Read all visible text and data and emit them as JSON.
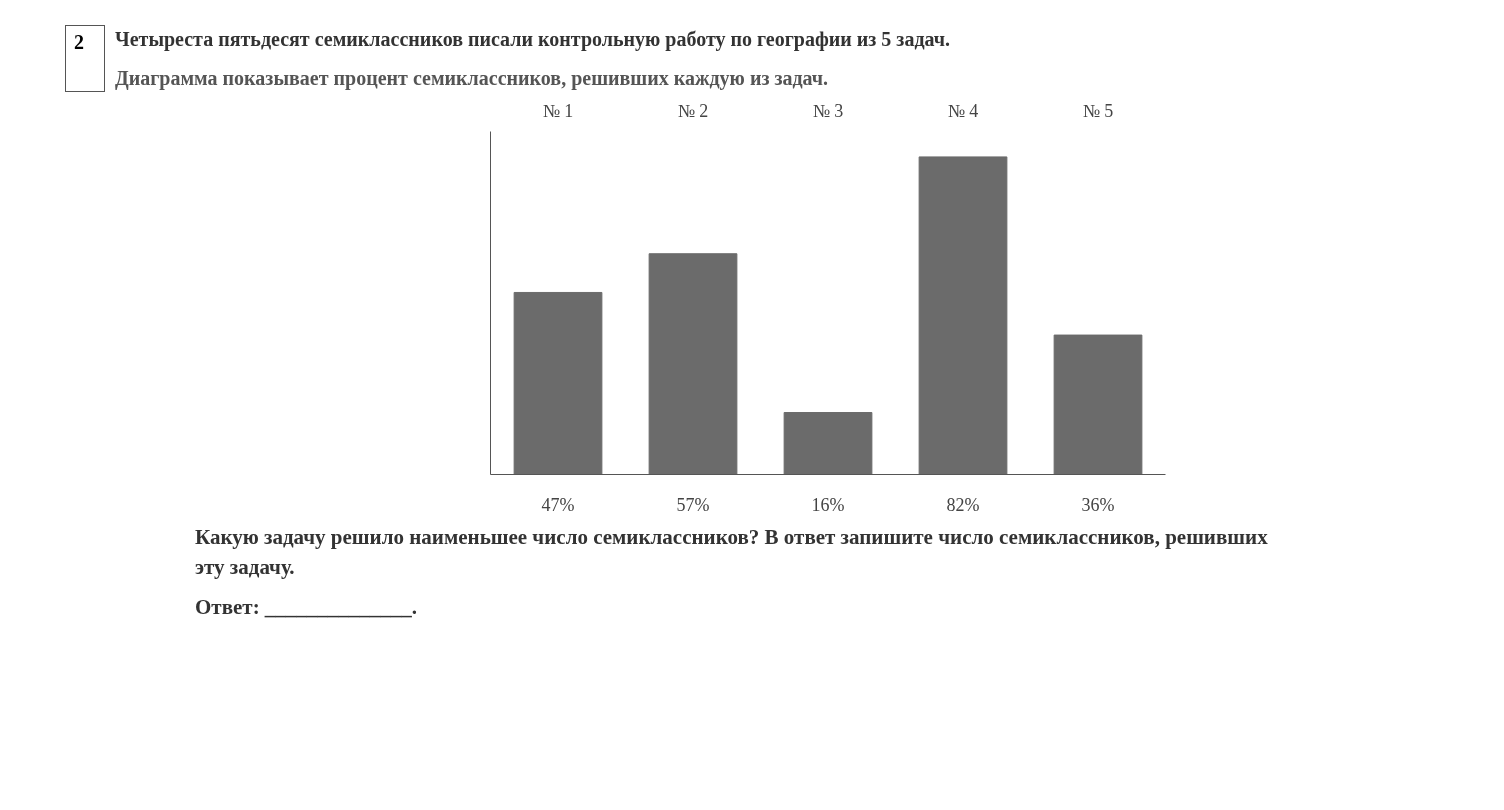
{
  "chart_data": {
    "type": "bar",
    "title": "Четыреста пятьдесят семиклассников писали контрольную работу по географии из 5 задач.",
    "subtitle": "Диаграмма показывает процент семиклассников, решивших каждую из задач.",
    "categories": [
      "№ 1",
      "№ 2",
      "№ 3",
      "№ 4",
      "№ 5"
    ],
    "values": [
      47,
      57,
      16,
      82,
      36
    ],
    "value_labels": [
      "47%",
      "57%",
      "16%",
      "82%",
      "36%"
    ],
    "color": "#6b6b6b",
    "annotations": [
      "2",
      "Какую задачу решило наименьшее число семиклассников? В ответ запишите число семиклассников, решивших эту задачу.",
      "Ответ: ______________."
    ]
  }
}
